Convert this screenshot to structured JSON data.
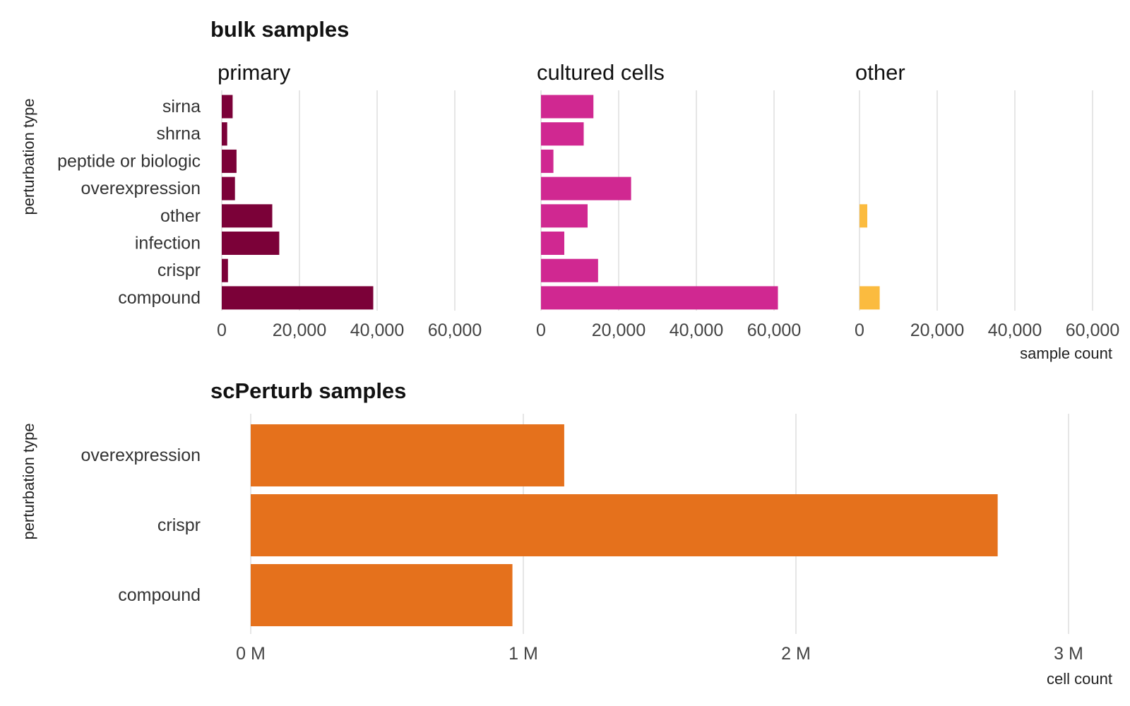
{
  "chart_data": [
    {
      "type": "bar",
      "orientation": "horizontal",
      "title": "bulk samples",
      "ylabel": "perturbation type",
      "xlabel": "sample count",
      "categories": [
        "sirna",
        "shrna",
        "peptide or biologic",
        "overexpression",
        "other",
        "infection",
        "crispr",
        "compound"
      ],
      "xlim": [
        0,
        60000
      ],
      "xticks": [
        0,
        20000,
        40000,
        60000
      ],
      "xtick_labels": [
        "0",
        "20,000",
        "40,000",
        "60,000"
      ],
      "facets": [
        {
          "name": "primary",
          "color": "#7b0138",
          "values": [
            2800,
            1400,
            3800,
            3400,
            13000,
            14800,
            1600,
            39000
          ]
        },
        {
          "name": "cultured cells",
          "color": "#d02891",
          "values": [
            13500,
            11000,
            3200,
            23200,
            12000,
            6000,
            14700,
            61000
          ]
        },
        {
          "name": "other",
          "color": "#fbbb3f",
          "values": [
            0,
            0,
            0,
            0,
            2000,
            0,
            0,
            5200
          ]
        }
      ]
    },
    {
      "type": "bar",
      "orientation": "horizontal",
      "title": "scPerturb samples",
      "ylabel": "perturbation type",
      "xlabel": "cell count",
      "categories": [
        "overexpression",
        "crispr",
        "compound"
      ],
      "color": "#e5711c",
      "values": [
        1150000,
        2740000,
        960000
      ],
      "xlim": [
        0,
        3000000
      ],
      "xticks": [
        0,
        1000000,
        2000000,
        3000000
      ],
      "xtick_labels": [
        "0 M",
        "1 M",
        "2 M",
        "3 M"
      ]
    }
  ]
}
